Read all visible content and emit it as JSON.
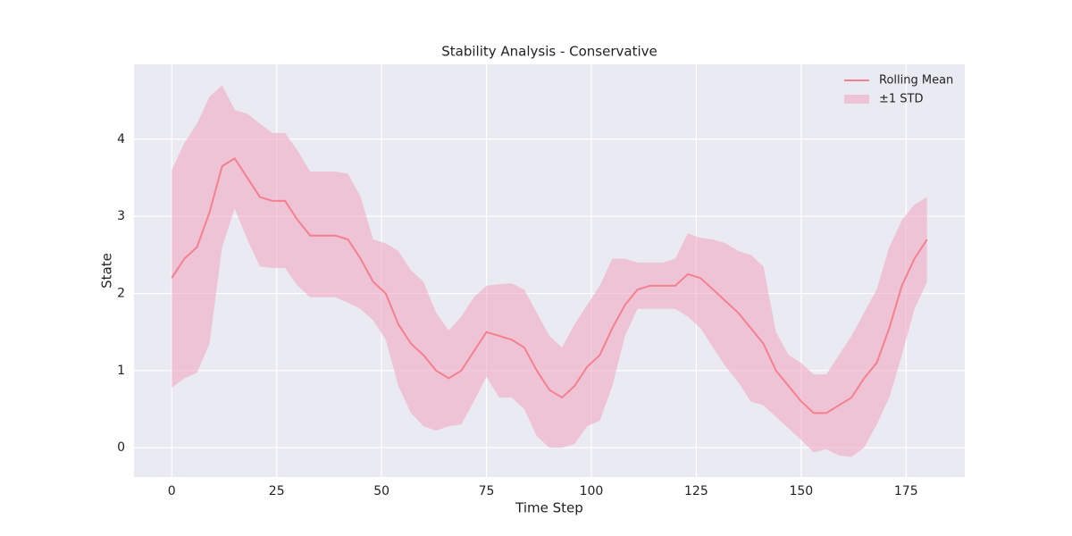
{
  "chart_data": {
    "type": "line-band",
    "title": "Stability Analysis - Conservative",
    "xlabel": "Time Step",
    "ylabel": "State",
    "x": [
      0,
      3,
      6,
      9,
      12,
      15,
      18,
      21,
      24,
      27,
      30,
      33,
      36,
      39,
      42,
      45,
      48,
      51,
      54,
      57,
      60,
      63,
      66,
      69,
      72,
      75,
      78,
      81,
      84,
      87,
      90,
      93,
      96,
      99,
      102,
      105,
      108,
      111,
      114,
      117,
      120,
      123,
      126,
      129,
      132,
      135,
      138,
      141,
      144,
      147,
      150,
      153,
      156,
      159,
      162,
      165,
      168,
      171,
      174,
      177,
      180
    ],
    "series": [
      {
        "name": "Rolling Mean",
        "color": "#f4808f",
        "values": [
          2.2,
          2.45,
          2.6,
          3.05,
          3.65,
          3.75,
          3.5,
          3.25,
          3.2,
          3.2,
          2.95,
          2.75,
          2.75,
          2.75,
          2.7,
          2.45,
          2.15,
          2.0,
          1.6,
          1.35,
          1.2,
          1.0,
          0.9,
          1.0,
          1.25,
          1.5,
          1.45,
          1.4,
          1.3,
          1.0,
          0.75,
          0.65,
          0.8,
          1.05,
          1.2,
          1.55,
          1.85,
          2.05,
          2.1,
          2.1,
          2.1,
          2.25,
          2.2,
          2.05,
          1.9,
          1.75,
          1.55,
          1.35,
          1.0,
          0.8,
          0.6,
          0.45,
          0.45,
          0.55,
          0.65,
          0.9,
          1.1,
          1.55,
          2.1,
          2.45,
          2.7
        ]
      },
      {
        "name": "±1 STD",
        "color": "#f0a3bd",
        "upper": [
          3.6,
          3.95,
          4.2,
          4.55,
          4.7,
          4.38,
          4.33,
          4.2,
          4.08,
          4.08,
          3.85,
          3.58,
          3.58,
          3.58,
          3.55,
          3.25,
          2.7,
          2.65,
          2.55,
          2.3,
          2.15,
          1.75,
          1.52,
          1.7,
          1.95,
          2.1,
          2.12,
          2.13,
          2.05,
          1.75,
          1.45,
          1.3,
          1.6,
          1.85,
          2.1,
          2.45,
          2.45,
          2.4,
          2.4,
          2.4,
          2.45,
          2.78,
          2.72,
          2.7,
          2.65,
          2.55,
          2.5,
          2.35,
          1.5,
          1.2,
          1.1,
          0.95,
          0.95,
          1.2,
          1.45,
          1.75,
          2.05,
          2.6,
          2.95,
          3.15,
          3.25
        ],
        "lower": [
          0.78,
          0.9,
          0.97,
          1.35,
          2.6,
          3.1,
          2.7,
          2.35,
          2.33,
          2.33,
          2.1,
          1.95,
          1.95,
          1.95,
          1.88,
          1.8,
          1.65,
          1.4,
          0.8,
          0.45,
          0.28,
          0.22,
          0.28,
          0.3,
          0.6,
          0.92,
          0.65,
          0.65,
          0.5,
          0.15,
          0.0,
          0.0,
          0.05,
          0.28,
          0.35,
          0.8,
          1.45,
          1.8,
          1.8,
          1.8,
          1.8,
          1.7,
          1.55,
          1.3,
          1.05,
          0.85,
          0.6,
          0.55,
          0.4,
          0.25,
          0.1,
          -0.06,
          -0.02,
          -0.1,
          -0.12,
          0.0,
          0.3,
          0.65,
          1.2,
          1.8,
          2.15
        ]
      }
    ],
    "xlim": [
      -9,
      189
    ],
    "ylim": [
      -0.38,
      4.97
    ],
    "xticks": [
      0,
      25,
      50,
      75,
      100,
      125,
      150,
      175
    ],
    "yticks": [
      0,
      1,
      2,
      3,
      4
    ],
    "grid": true,
    "legend": "upper right"
  }
}
